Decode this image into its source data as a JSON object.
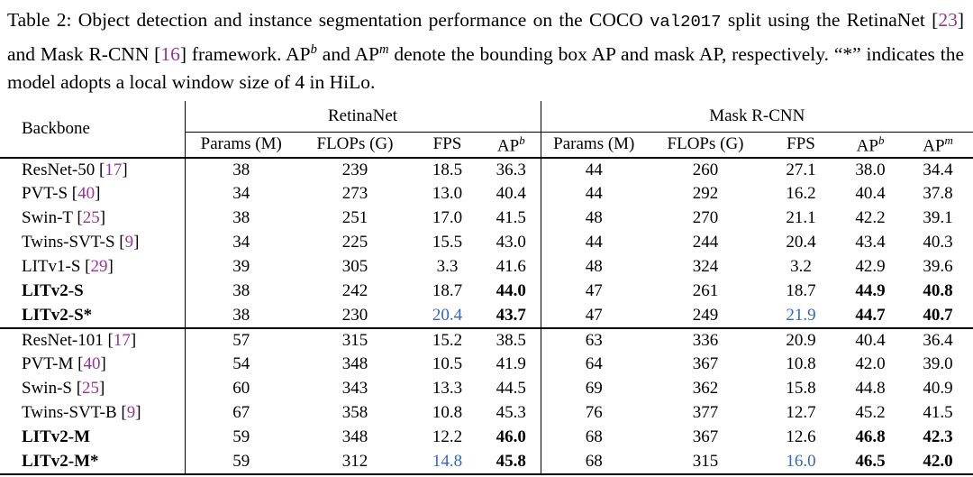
{
  "colors": {
    "cite": "#993399",
    "highlight": "#3366cc",
    "text": "#000000"
  },
  "caption": {
    "s1": "Table 2: Object detection and instance segmentation performance on the COCO ",
    "code1": "val2017",
    "s2": " split using the RetinaNet [",
    "cite1": "23",
    "s3": "] and Mask R-CNN [",
    "cite2": "16",
    "s4": "] framework. AP",
    "sup1": "b",
    "s5": " and AP",
    "sup2": "m",
    "s6": " denote the bounding box AP and mask AP, respectively. “*” indicates the model adopts a local window size of 4 in HiLo."
  },
  "table": {
    "header": {
      "backbone": "Backbone",
      "groups": [
        {
          "label": "RetinaNet",
          "span": 4
        },
        {
          "label": "Mask R-CNN",
          "span": 5
        }
      ],
      "subcols": [
        {
          "label": "Params (M)"
        },
        {
          "label": "FLOPs (G)"
        },
        {
          "label": "FPS"
        },
        {
          "label": "AP",
          "sup": "b"
        },
        {
          "label": "Params (M)"
        },
        {
          "label": "FLOPs (G)"
        },
        {
          "label": "FPS"
        },
        {
          "label": "AP",
          "sup": "b"
        },
        {
          "label": "AP",
          "sup": "m"
        }
      ]
    },
    "rows": [
      {
        "backbone": "ResNet-50",
        "cite": "17",
        "bold": false,
        "cells": [
          [
            "38"
          ],
          [
            "239"
          ],
          [
            "18.5"
          ],
          [
            "36.3"
          ],
          [
            "44"
          ],
          [
            "260"
          ],
          [
            "27.1"
          ],
          [
            "38.0"
          ],
          [
            "34.4"
          ]
        ]
      },
      {
        "backbone": "PVT-S",
        "cite": "40",
        "bold": false,
        "cells": [
          [
            "34"
          ],
          [
            "273"
          ],
          [
            "13.0"
          ],
          [
            "40.4"
          ],
          [
            "44"
          ],
          [
            "292"
          ],
          [
            "16.2"
          ],
          [
            "40.4"
          ],
          [
            "37.8"
          ]
        ]
      },
      {
        "backbone": "Swin-T",
        "cite": "25",
        "bold": false,
        "cells": [
          [
            "38"
          ],
          [
            "251"
          ],
          [
            "17.0"
          ],
          [
            "41.5"
          ],
          [
            "48"
          ],
          [
            "270"
          ],
          [
            "21.1"
          ],
          [
            "42.2"
          ],
          [
            "39.1"
          ]
        ]
      },
      {
        "backbone": "Twins-SVT-S",
        "cite": "9",
        "bold": false,
        "cells": [
          [
            "34"
          ],
          [
            "225"
          ],
          [
            "15.5"
          ],
          [
            "43.0"
          ],
          [
            "44"
          ],
          [
            "244"
          ],
          [
            "20.4"
          ],
          [
            "43.4"
          ],
          [
            "40.3"
          ]
        ]
      },
      {
        "backbone": "LITv1-S",
        "cite": "29",
        "bold": false,
        "cells": [
          [
            "39"
          ],
          [
            "305"
          ],
          [
            "3.3"
          ],
          [
            "41.6"
          ],
          [
            "48"
          ],
          [
            "324"
          ],
          [
            "3.2"
          ],
          [
            "42.9"
          ],
          [
            "39.6"
          ]
        ]
      },
      {
        "backbone": "LITv2-S",
        "cite": "",
        "bold": true,
        "cells": [
          [
            "38"
          ],
          [
            "242"
          ],
          [
            "18.7"
          ],
          [
            "44.0",
            "b"
          ],
          [
            "47"
          ],
          [
            "261"
          ],
          [
            "18.7"
          ],
          [
            "44.9",
            "b"
          ],
          [
            "40.8",
            "b"
          ]
        ]
      },
      {
        "backbone": "LITv2-S*",
        "cite": "",
        "bold": true,
        "cells": [
          [
            "38"
          ],
          [
            "230"
          ],
          [
            "20.4",
            "blue"
          ],
          [
            "43.7",
            "b"
          ],
          [
            "47"
          ],
          [
            "249"
          ],
          [
            "21.9",
            "blue"
          ],
          [
            "44.7",
            "b"
          ],
          [
            "40.7",
            "b"
          ]
        ]
      },
      {
        "backbone": "ResNet-101",
        "cite": "17",
        "bold": false,
        "sep": true,
        "cells": [
          [
            "57"
          ],
          [
            "315"
          ],
          [
            "15.2"
          ],
          [
            "38.5"
          ],
          [
            "63"
          ],
          [
            "336"
          ],
          [
            "20.9"
          ],
          [
            "40.4"
          ],
          [
            "36.4"
          ]
        ]
      },
      {
        "backbone": "PVT-M",
        "cite": "40",
        "bold": false,
        "cells": [
          [
            "54"
          ],
          [
            "348"
          ],
          [
            "10.5"
          ],
          [
            "41.9"
          ],
          [
            "64"
          ],
          [
            "367"
          ],
          [
            "10.8"
          ],
          [
            "42.0"
          ],
          [
            "39.0"
          ]
        ]
      },
      {
        "backbone": "Swin-S",
        "cite": "25",
        "bold": false,
        "cells": [
          [
            "60"
          ],
          [
            "343"
          ],
          [
            "13.3"
          ],
          [
            "44.5"
          ],
          [
            "69"
          ],
          [
            "362"
          ],
          [
            "15.8"
          ],
          [
            "44.8"
          ],
          [
            "40.9"
          ]
        ]
      },
      {
        "backbone": "Twins-SVT-B",
        "cite": "9",
        "bold": false,
        "cells": [
          [
            "67"
          ],
          [
            "358"
          ],
          [
            "10.8"
          ],
          [
            "45.3"
          ],
          [
            "76"
          ],
          [
            "377"
          ],
          [
            "12.7"
          ],
          [
            "45.2"
          ],
          [
            "41.5"
          ]
        ]
      },
      {
        "backbone": "LITv2-M",
        "cite": "",
        "bold": true,
        "cells": [
          [
            "59"
          ],
          [
            "348"
          ],
          [
            "12.2"
          ],
          [
            "46.0",
            "b"
          ],
          [
            "68"
          ],
          [
            "367"
          ],
          [
            "12.6"
          ],
          [
            "46.8",
            "b"
          ],
          [
            "42.3",
            "b"
          ]
        ]
      },
      {
        "backbone": "LITv2-M*",
        "cite": "",
        "bold": true,
        "cells": [
          [
            "59"
          ],
          [
            "312"
          ],
          [
            "14.8",
            "blue"
          ],
          [
            "45.8",
            "b"
          ],
          [
            "68"
          ],
          [
            "315"
          ],
          [
            "16.0",
            "blue"
          ],
          [
            "46.5",
            "b"
          ],
          [
            "42.0",
            "b"
          ]
        ]
      }
    ]
  }
}
